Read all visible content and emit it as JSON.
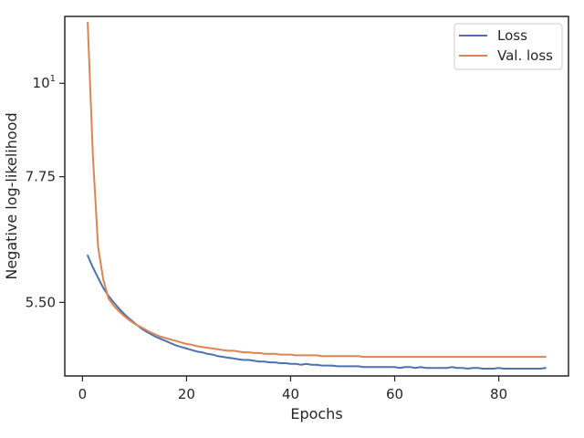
{
  "chart_data": {
    "type": "line",
    "title": "",
    "xlabel": "Epochs",
    "ylabel": "Negative log-likelihood",
    "yscale": "log",
    "xlim": [
      -3.4,
      93.4
    ],
    "ylim": [
      4.5,
      12.0
    ],
    "grid": false,
    "legend_position": "top-right",
    "xticks": [
      {
        "value": 0,
        "label": "0"
      },
      {
        "value": 20,
        "label": "20"
      },
      {
        "value": 40,
        "label": "40"
      },
      {
        "value": 60,
        "label": "60"
      },
      {
        "value": 80,
        "label": "80"
      }
    ],
    "yticks": [
      {
        "value": 5.5,
        "label": "5.50",
        "sup": ""
      },
      {
        "value": 7.75,
        "label": "7.75",
        "sup": ""
      },
      {
        "value": 10,
        "label": "10",
        "sup": "1"
      }
    ],
    "series": [
      {
        "name": "Loss",
        "color": "#4c72b0",
        "x": [
          1,
          2,
          3,
          4,
          5,
          6,
          7,
          8,
          9,
          10,
          11,
          12,
          13,
          14,
          15,
          16,
          17,
          18,
          19,
          20,
          21,
          22,
          23,
          24,
          25,
          26,
          27,
          28,
          29,
          30,
          31,
          32,
          33,
          34,
          35,
          36,
          37,
          38,
          39,
          40,
          41,
          42,
          43,
          44,
          45,
          46,
          47,
          48,
          49,
          50,
          51,
          52,
          53,
          54,
          55,
          56,
          57,
          58,
          59,
          60,
          61,
          62,
          63,
          64,
          65,
          66,
          67,
          68,
          69,
          70,
          71,
          72,
          73,
          74,
          75,
          76,
          77,
          78,
          79,
          80,
          81,
          82,
          83,
          84,
          85,
          86,
          87,
          88,
          89
        ],
        "values": [
          6.25,
          6.05,
          5.88,
          5.72,
          5.6,
          5.5,
          5.41,
          5.33,
          5.26,
          5.2,
          5.14,
          5.09,
          5.05,
          5.01,
          4.98,
          4.95,
          4.92,
          4.89,
          4.87,
          4.85,
          4.83,
          4.81,
          4.8,
          4.78,
          4.77,
          4.75,
          4.74,
          4.73,
          4.72,
          4.71,
          4.7,
          4.7,
          4.69,
          4.68,
          4.68,
          4.67,
          4.67,
          4.66,
          4.66,
          4.65,
          4.65,
          4.64,
          4.65,
          4.64,
          4.64,
          4.63,
          4.63,
          4.63,
          4.62,
          4.62,
          4.62,
          4.62,
          4.62,
          4.61,
          4.61,
          4.61,
          4.61,
          4.61,
          4.61,
          4.61,
          4.6,
          4.61,
          4.61,
          4.6,
          4.61,
          4.6,
          4.6,
          4.6,
          4.6,
          4.6,
          4.61,
          4.6,
          4.6,
          4.59,
          4.6,
          4.6,
          4.59,
          4.59,
          4.59,
          4.6,
          4.59,
          4.59,
          4.59,
          4.59,
          4.59,
          4.59,
          4.59,
          4.59,
          4.6
        ]
      },
      {
        "name": "Val. loss",
        "color": "#dd8452",
        "x": [
          1,
          2,
          3,
          4,
          5,
          6,
          7,
          8,
          9,
          10,
          11,
          12,
          13,
          14,
          15,
          16,
          17,
          18,
          19,
          20,
          21,
          22,
          23,
          24,
          25,
          26,
          27,
          28,
          29,
          30,
          31,
          32,
          33,
          34,
          35,
          36,
          37,
          38,
          39,
          40,
          41,
          42,
          43,
          44,
          45,
          46,
          47,
          48,
          49,
          50,
          51,
          52,
          53,
          54,
          55,
          56,
          57,
          58,
          59,
          60,
          61,
          62,
          63,
          64,
          65,
          66,
          67,
          68,
          69,
          70,
          71,
          72,
          73,
          74,
          75,
          76,
          77,
          78,
          79,
          80,
          81,
          82,
          83,
          84,
          85,
          86,
          87,
          88,
          89
        ],
        "values": [
          11.8,
          8.2,
          6.4,
          5.85,
          5.56,
          5.45,
          5.37,
          5.3,
          5.24,
          5.19,
          5.15,
          5.11,
          5.07,
          5.04,
          5.01,
          4.99,
          4.97,
          4.95,
          4.93,
          4.91,
          4.9,
          4.88,
          4.87,
          4.86,
          4.85,
          4.84,
          4.83,
          4.82,
          4.82,
          4.81,
          4.8,
          4.8,
          4.79,
          4.79,
          4.78,
          4.78,
          4.78,
          4.77,
          4.77,
          4.77,
          4.76,
          4.76,
          4.76,
          4.76,
          4.76,
          4.75,
          4.75,
          4.75,
          4.75,
          4.75,
          4.75,
          4.75,
          4.75,
          4.74,
          4.74,
          4.74,
          4.74,
          4.74,
          4.74,
          4.74,
          4.74,
          4.74,
          4.74,
          4.74,
          4.74,
          4.74,
          4.74,
          4.74,
          4.74,
          4.74,
          4.74,
          4.74,
          4.74,
          4.74,
          4.74,
          4.74,
          4.74,
          4.74,
          4.74,
          4.74,
          4.74,
          4.74,
          4.74,
          4.74,
          4.74,
          4.74,
          4.74,
          4.74,
          4.74
        ]
      }
    ]
  }
}
